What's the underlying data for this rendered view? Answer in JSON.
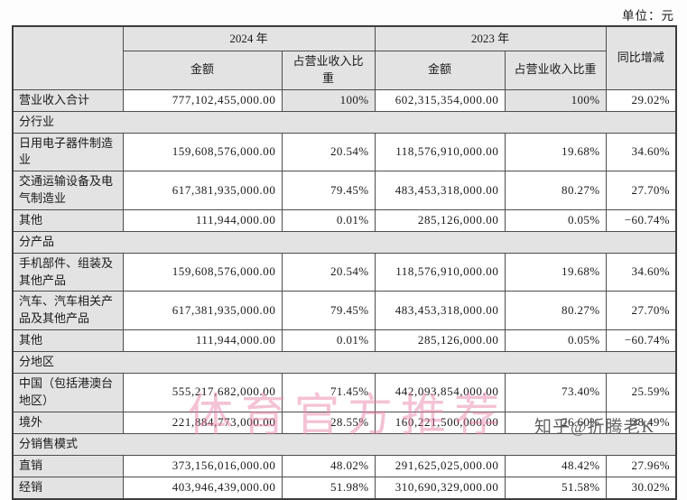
{
  "page": {
    "unit_label": "单位：元"
  },
  "watermarks": {
    "pink": "体育官方推荐",
    "gray": "知乎@折腾老K"
  },
  "table": {
    "headers": {
      "year_2024": "2024 年",
      "year_2023": "2023 年",
      "yoy": "同比增减",
      "amount": "金额",
      "share": "占营业收入比重"
    },
    "rows": [
      {
        "type": "data",
        "label": "营业收入合计",
        "a2024": "777,102,455,000.00",
        "s2024": "100%",
        "a2023": "602,315,354,000.00",
        "s2023": "100%",
        "yoy": "29.02%",
        "shade_share": true
      },
      {
        "type": "section",
        "label": "分行业"
      },
      {
        "type": "data",
        "label": "日用电子器件制造业",
        "a2024": "159,608,576,000.00",
        "s2024": "20.54%",
        "a2023": "118,576,910,000.00",
        "s2023": "19.68%",
        "yoy": "34.60%"
      },
      {
        "type": "data",
        "label": "交通运输设备及电气制造业",
        "a2024": "617,381,935,000.00",
        "s2024": "79.45%",
        "a2023": "483,453,318,000.00",
        "s2023": "80.27%",
        "yoy": "27.70%"
      },
      {
        "type": "data",
        "label": "其他",
        "a2024": "111,944,000.00",
        "s2024": "0.01%",
        "a2023": "285,126,000.00",
        "s2023": "0.05%",
        "yoy": "−60.74%"
      },
      {
        "type": "section",
        "label": "分产品"
      },
      {
        "type": "data",
        "label": "手机部件、组装及其他产品",
        "a2024": "159,608,576,000.00",
        "s2024": "20.54%",
        "a2023": "118,576,910,000.00",
        "s2023": "19.68%",
        "yoy": "34.60%"
      },
      {
        "type": "data",
        "label": "汽车、汽车相关产品及其他产品",
        "a2024": "617,381,935,000.00",
        "s2024": "79.45%",
        "a2023": "483,453,318,000.00",
        "s2023": "80.27%",
        "yoy": "27.70%"
      },
      {
        "type": "data",
        "label": "其他",
        "a2024": "111,944,000.00",
        "s2024": "0.01%",
        "a2023": "285,126,000.00",
        "s2023": "0.05%",
        "yoy": "−60.74%"
      },
      {
        "type": "section",
        "label": "分地区"
      },
      {
        "type": "data",
        "label": "中国（包括港澳台地区）",
        "a2024": "555,217,682,000.00",
        "s2024": "71.45%",
        "a2023": "442,093,854,000.00",
        "s2023": "73.40%",
        "yoy": "25.59%"
      },
      {
        "type": "data",
        "label": "境外",
        "a2024": "221,884,773,000.00",
        "s2024": "28.55%",
        "a2023": "160,221,500,000.00",
        "s2023": "26.60%",
        "yoy": "38.49%"
      },
      {
        "type": "section",
        "label": "分销售模式"
      },
      {
        "type": "data",
        "label": "直销",
        "a2024": "373,156,016,000.00",
        "s2024": "48.02%",
        "a2023": "291,625,025,000.00",
        "s2023": "48.42%",
        "yoy": "27.96%"
      },
      {
        "type": "data",
        "label": "经销",
        "a2024": "403,946,439,000.00",
        "s2024": "51.98%",
        "a2023": "310,690,329,000.00",
        "s2023": "51.58%",
        "yoy": "30.02%"
      }
    ]
  }
}
